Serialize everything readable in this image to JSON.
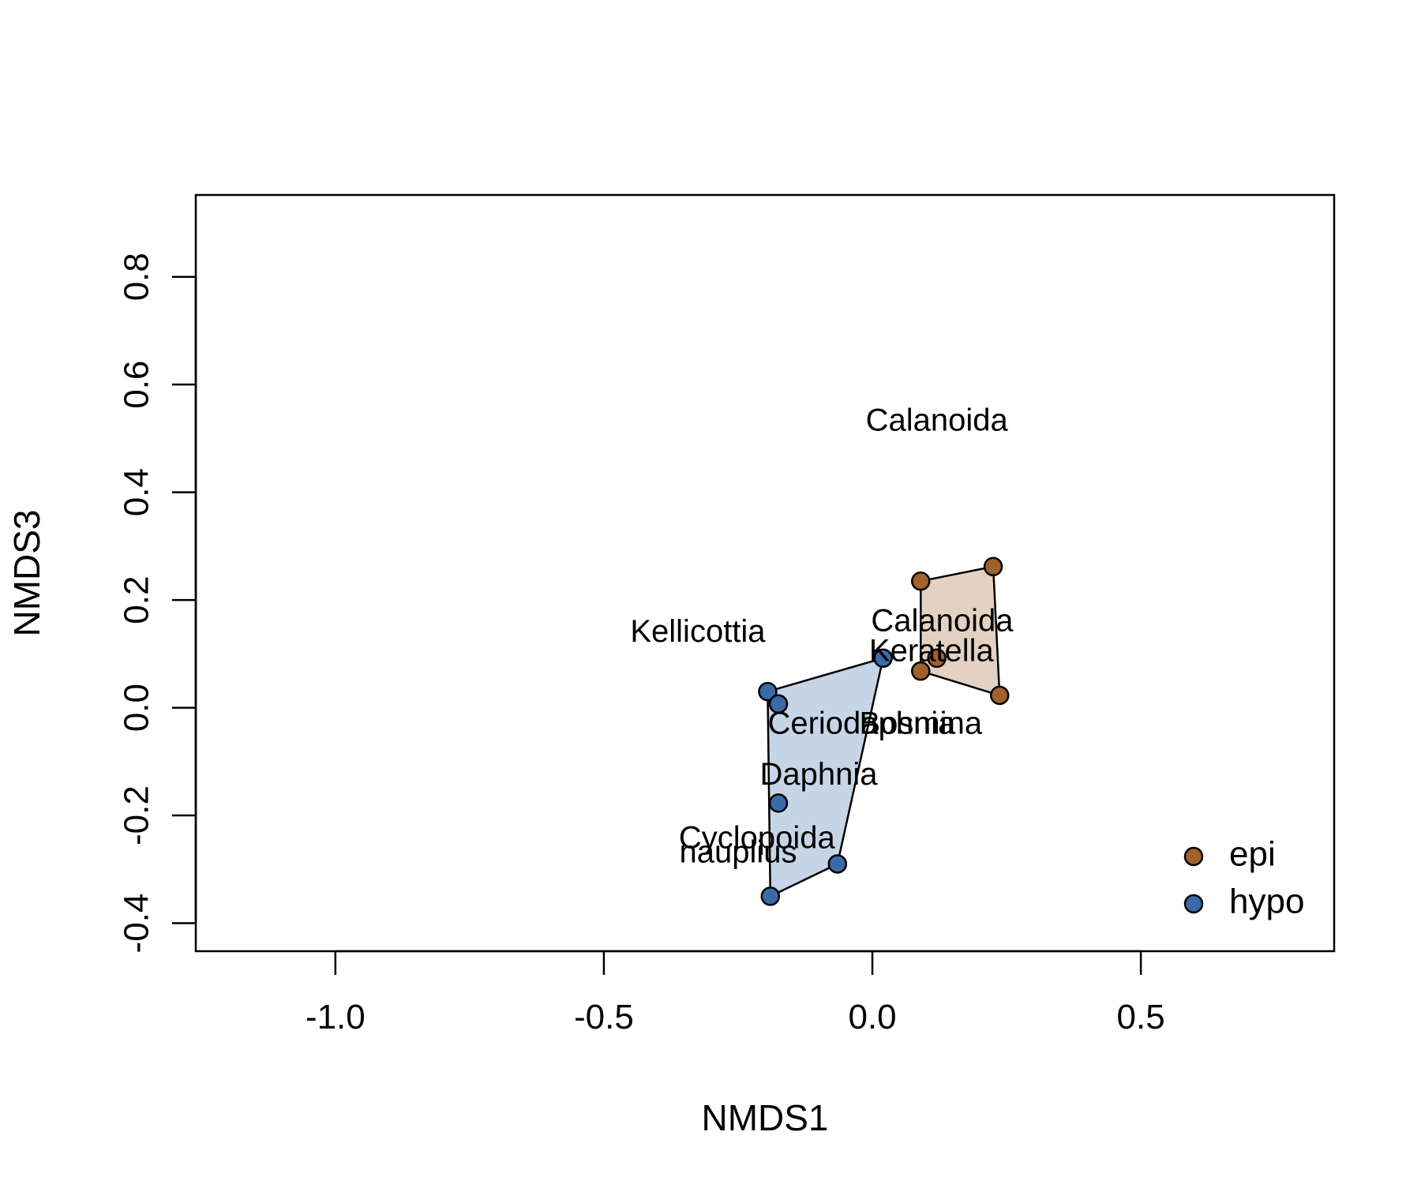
{
  "chart_data": {
    "type": "scatter",
    "title": "",
    "xlabel": "NMDS1",
    "ylabel": "NMDS3",
    "xlim": [
      -1.26,
      0.86
    ],
    "ylim": [
      -0.452,
      0.952
    ],
    "xticks": [
      -1.0,
      -0.5,
      0.0,
      0.5
    ],
    "xtick_labels": [
      "-1.0",
      "-0.5",
      "0.0",
      "0.5"
    ],
    "yticks": [
      -0.4,
      -0.2,
      0.0,
      0.2,
      0.4,
      0.6,
      0.8
    ],
    "ytick_labels": [
      "-0.4",
      "-0.2",
      "0.0",
      "0.2",
      "0.4",
      "0.6",
      "0.8"
    ],
    "grid": false,
    "legend_position": "bottom-right",
    "series": [
      {
        "name": "epi",
        "color": "#A0612D",
        "fill": "#E3D1C1",
        "points": [
          {
            "x": 0.09,
            "y": 0.235
          },
          {
            "x": 0.225,
            "y": 0.262
          },
          {
            "x": 0.237,
            "y": 0.023
          },
          {
            "x": 0.09,
            "y": 0.068
          },
          {
            "x": 0.12,
            "y": 0.092
          }
        ],
        "hull": [
          [
            0.09,
            0.235
          ],
          [
            0.225,
            0.262
          ],
          [
            0.237,
            0.023
          ],
          [
            0.09,
            0.068
          ]
        ]
      },
      {
        "name": "hypo",
        "color": "#3A6BA8",
        "fill": "#C6D5E6",
        "points": [
          {
            "x": -0.195,
            "y": 0.03
          },
          {
            "x": -0.175,
            "y": 0.007
          },
          {
            "x": 0.02,
            "y": 0.092
          },
          {
            "x": -0.175,
            "y": -0.177
          },
          {
            "x": -0.065,
            "y": -0.29
          },
          {
            "x": -0.19,
            "y": -0.35
          }
        ],
        "hull": [
          [
            -0.195,
            0.03
          ],
          [
            0.02,
            0.092
          ],
          [
            -0.065,
            -0.29
          ],
          [
            -0.19,
            -0.35
          ]
        ]
      }
    ],
    "species": [
      {
        "label": "Calanoida",
        "x": 0.12,
        "y": 0.53
      },
      {
        "label": "Calanoida",
        "x": 0.13,
        "y": 0.158
      },
      {
        "label": "Keratella",
        "x": 0.11,
        "y": 0.102
      },
      {
        "label": "Kellicottia",
        "x": -0.325,
        "y": 0.138
      },
      {
        "label": "Ceriodaphnia",
        "x": -0.02,
        "y": -0.033
      },
      {
        "label": "Bosmina",
        "x": 0.09,
        "y": -0.033
      },
      {
        "label": "Daphnia",
        "x": -0.1,
        "y": -0.127
      },
      {
        "label": "Cyclopoida",
        "x": -0.215,
        "y": -0.245
      },
      {
        "label": "nauplius",
        "x": -0.25,
        "y": -0.272
      }
    ]
  }
}
